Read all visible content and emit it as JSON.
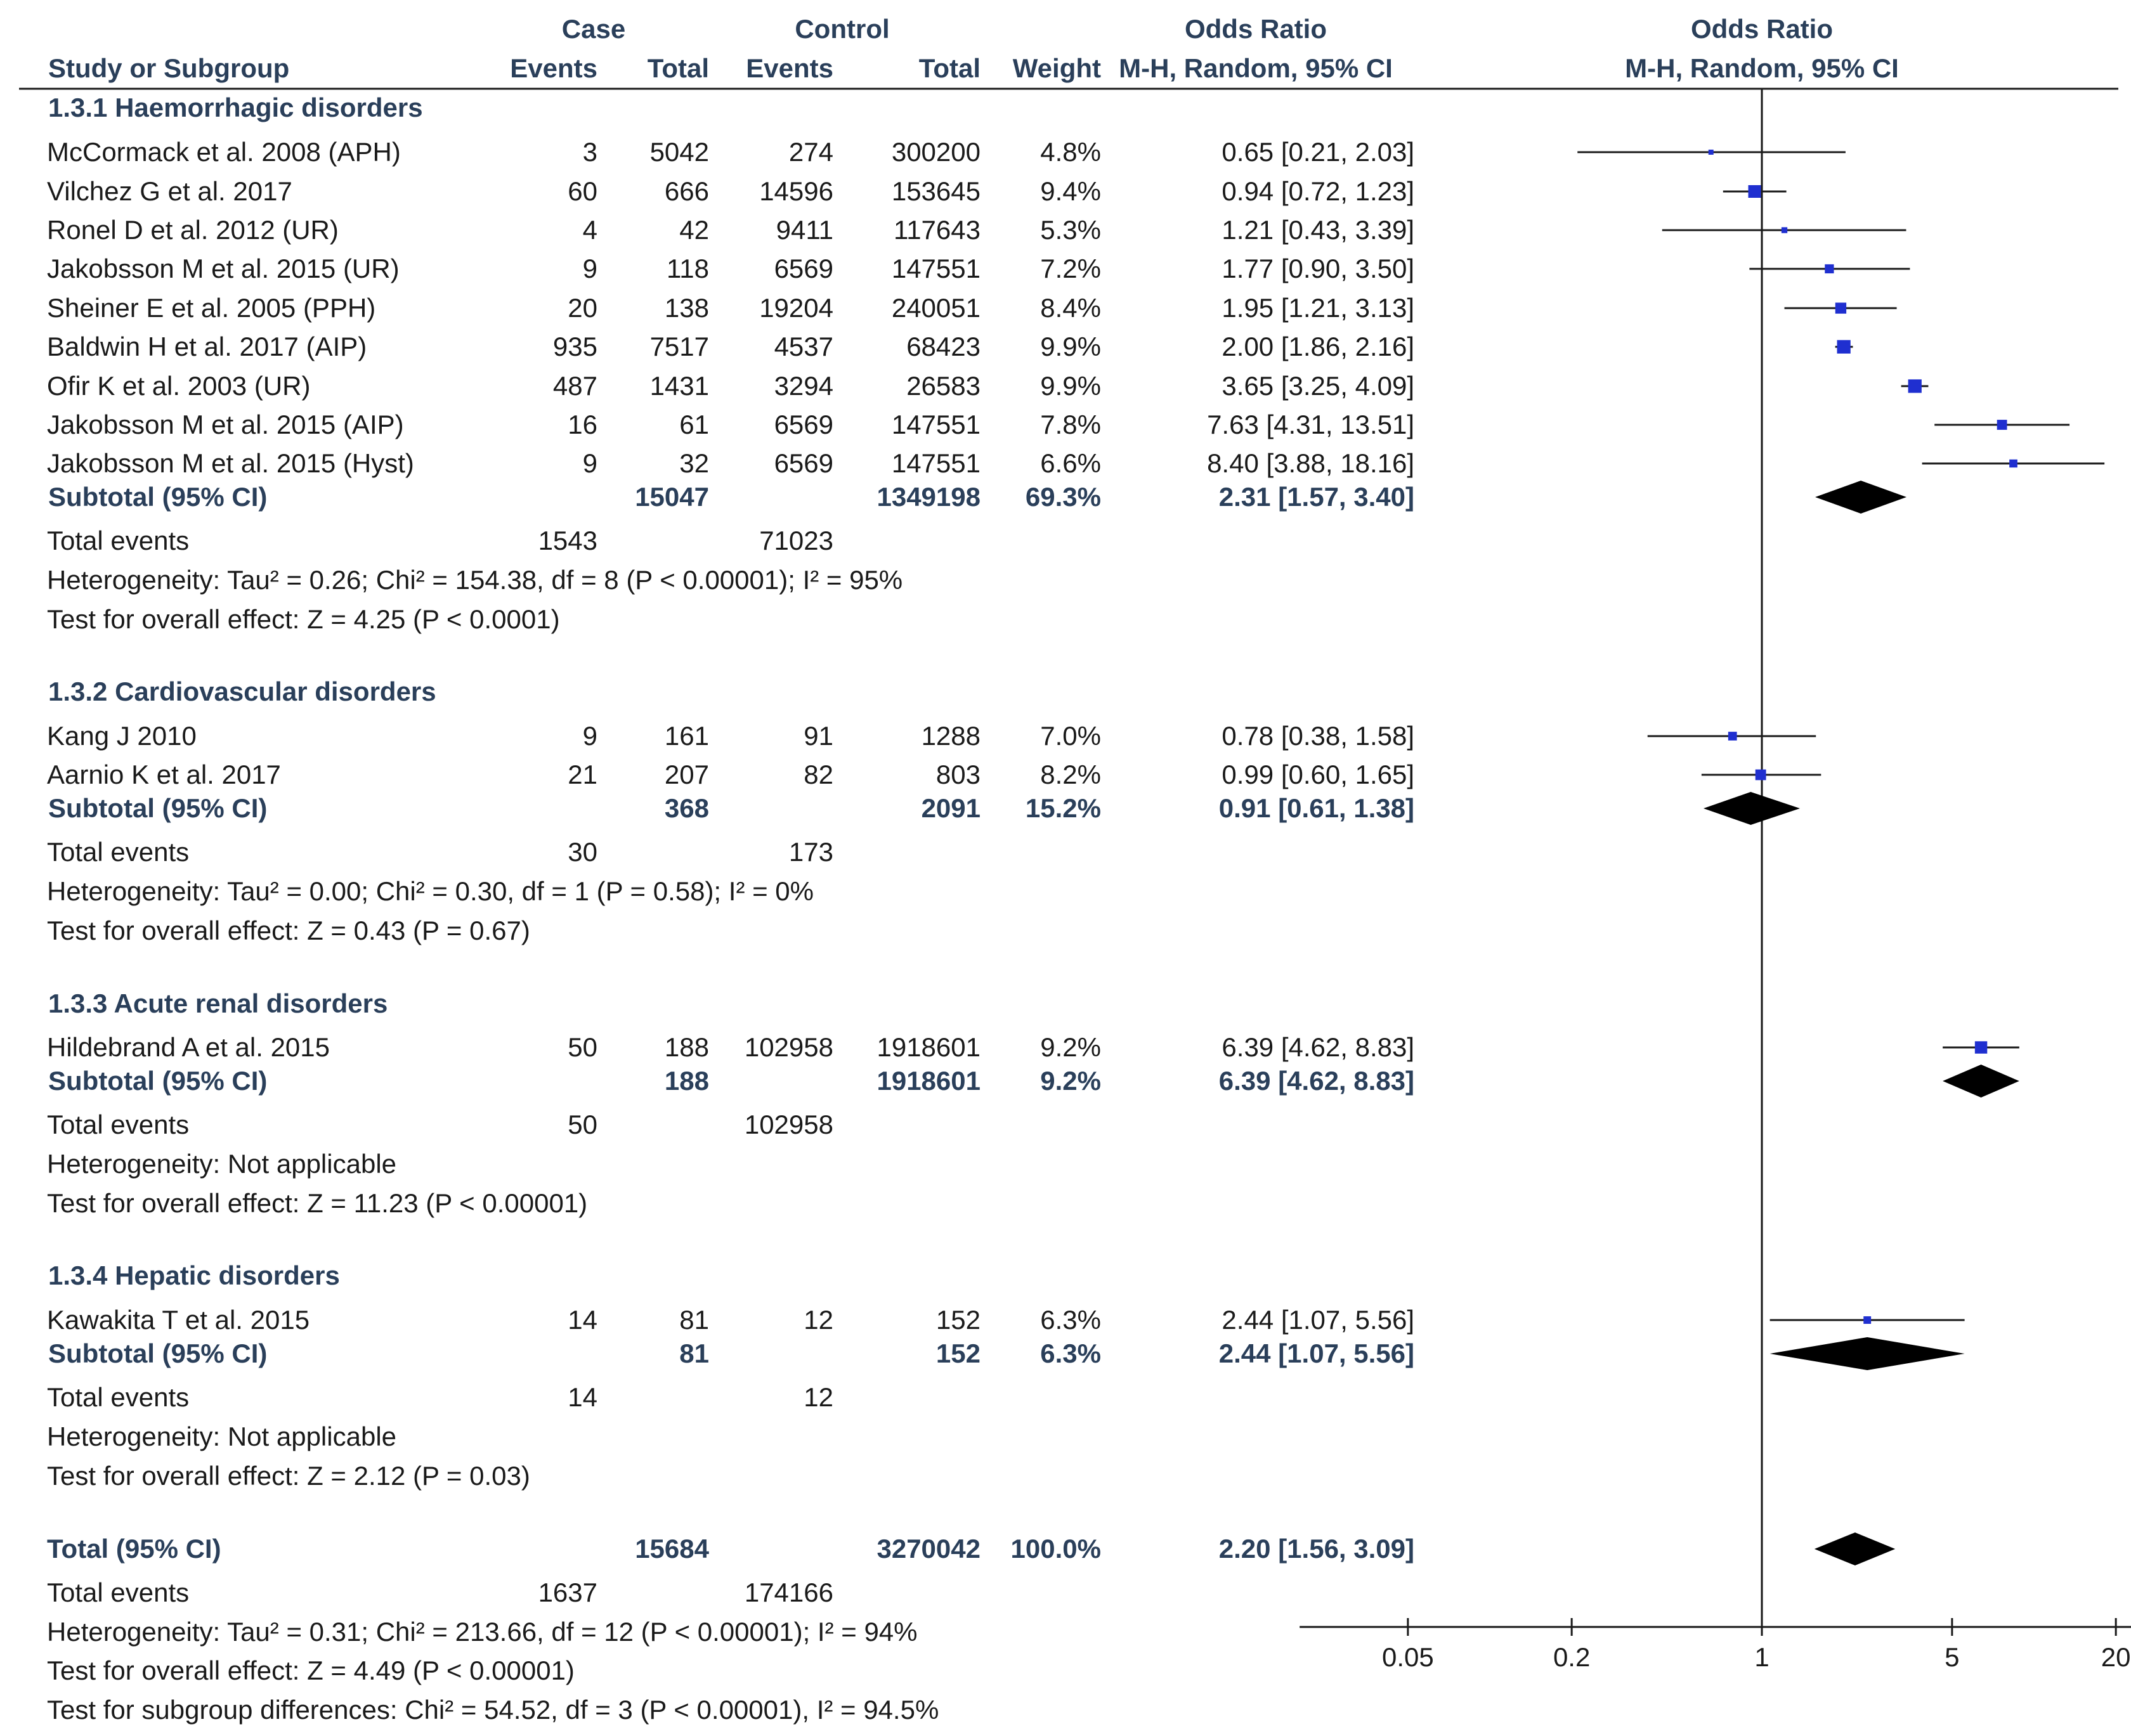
{
  "header": {
    "case": "Case",
    "control": "Control",
    "study_col": "Study or Subgroup",
    "events": "Events",
    "total": "Total",
    "events2": "Events",
    "total2": "Total",
    "weight": "Weight",
    "or_title": "Odds Ratio",
    "or_method": "M-H, Random, 95% CI",
    "plot_title": "Odds Ratio",
    "plot_method": "M-H, Random, 95% CI"
  },
  "groups": [
    {
      "title": "1.3.1 Haemorrhagic disorders",
      "studies": [
        {
          "name": "McCormack et al. 2008 (APH)",
          "ce": "3",
          "ct": "5042",
          "ke": "274",
          "kt": "300200",
          "w": "4.8%",
          "ci": "0.65 [0.21, 2.03]"
        },
        {
          "name": "Vilchez G et al. 2017",
          "ce": "60",
          "ct": "666",
          "ke": "14596",
          "kt": "153645",
          "w": "9.4%",
          "ci": "0.94 [0.72, 1.23]"
        },
        {
          "name": "Ronel D et al. 2012 (UR)",
          "ce": "4",
          "ct": "42",
          "ke": "9411",
          "kt": "117643",
          "w": "5.3%",
          "ci": "1.21 [0.43, 3.39]"
        },
        {
          "name": "Jakobsson M et al. 2015 (UR)",
          "ce": "9",
          "ct": "118",
          "ke": "6569",
          "kt": "147551",
          "w": "7.2%",
          "ci": "1.77 [0.90, 3.50]"
        },
        {
          "name": "Sheiner E et al. 2005 (PPH)",
          "ce": "20",
          "ct": "138",
          "ke": "19204",
          "kt": "240051",
          "w": "8.4%",
          "ci": "1.95 [1.21, 3.13]"
        },
        {
          "name": "Baldwin H et al. 2017 (AIP)",
          "ce": "935",
          "ct": "7517",
          "ke": "4537",
          "kt": "68423",
          "w": "9.9%",
          "ci": "2.00 [1.86, 2.16]"
        },
        {
          "name": "Ofir K et al. 2003 (UR)",
          "ce": "487",
          "ct": "1431",
          "ke": "3294",
          "kt": "26583",
          "w": "9.9%",
          "ci": "3.65 [3.25, 4.09]"
        },
        {
          "name": "Jakobsson M et al. 2015 (AIP)",
          "ce": "16",
          "ct": "61",
          "ke": "6569",
          "kt": "147551",
          "w": "7.8%",
          "ci": "7.63 [4.31, 13.51]"
        },
        {
          "name": "Jakobsson M et al. 2015 (Hyst)",
          "ce": "9",
          "ct": "32",
          "ke": "6569",
          "kt": "147551",
          "w": "6.6%",
          "ci": "8.40 [3.88, 18.16]"
        }
      ],
      "subtotal": {
        "label": "Subtotal (95% CI)",
        "ct": "15047",
        "kt": "1349198",
        "w": "69.3%",
        "ci": "2.31 [1.57, 3.40]"
      },
      "events": {
        "label": "Total events",
        "ce": "1543",
        "ke": "71023"
      },
      "heterogeneity": "Heterogeneity: Tau² = 0.26; Chi² = 154.38, df = 8 (P < 0.00001); I² = 95%",
      "overall": "Test for overall effect: Z = 4.25 (P < 0.0001)"
    },
    {
      "title": "1.3.2 Cardiovascular disorders",
      "studies": [
        {
          "name": "Kang J 2010",
          "ce": "9",
          "ct": "161",
          "ke": "91",
          "kt": "1288",
          "w": "7.0%",
          "ci": "0.78 [0.38, 1.58]"
        },
        {
          "name": "Aarnio K et al. 2017",
          "ce": "21",
          "ct": "207",
          "ke": "82",
          "kt": "803",
          "w": "8.2%",
          "ci": "0.99 [0.60, 1.65]"
        }
      ],
      "subtotal": {
        "label": "Subtotal (95% CI)",
        "ct": "368",
        "kt": "2091",
        "w": "15.2%",
        "ci": "0.91 [0.61, 1.38]"
      },
      "events": {
        "label": "Total events",
        "ce": "30",
        "ke": "173"
      },
      "heterogeneity": "Heterogeneity: Tau² = 0.00; Chi² = 0.30, df = 1 (P = 0.58); I² = 0%",
      "overall": "Test for overall effect: Z = 0.43 (P = 0.67)"
    },
    {
      "title": "1.3.3 Acute renal disorders",
      "studies": [
        {
          "name": "Hildebrand A et al. 2015",
          "ce": "50",
          "ct": "188",
          "ke": "102958",
          "kt": "1918601",
          "w": "9.2%",
          "ci": "6.39 [4.62, 8.83]"
        }
      ],
      "subtotal": {
        "label": "Subtotal (95% CI)",
        "ct": "188",
        "kt": "1918601",
        "w": "9.2%",
        "ci": "6.39 [4.62, 8.83]"
      },
      "events": {
        "label": "Total events",
        "ce": "50",
        "ke": "102958"
      },
      "heterogeneity": "Heterogeneity: Not applicable",
      "overall": "Test for overall effect: Z = 11.23 (P < 0.00001)"
    },
    {
      "title": "1.3.4 Hepatic disorders",
      "studies": [
        {
          "name": "Kawakita T et al. 2015",
          "ce": "14",
          "ct": "81",
          "ke": "12",
          "kt": "152",
          "w": "6.3%",
          "ci": "2.44 [1.07, 5.56]"
        }
      ],
      "subtotal": {
        "label": "Subtotal (95% CI)",
        "ct": "81",
        "kt": "152",
        "w": "6.3%",
        "ci": "2.44 [1.07, 5.56]"
      },
      "events": {
        "label": "Total events",
        "ce": "14",
        "ke": "12"
      },
      "heterogeneity": "Heterogeneity: Not applicable",
      "overall": "Test for overall effect: Z = 2.12 (P = 0.03)"
    }
  ],
  "total": {
    "label": "Total (95% CI)",
    "ct": "15684",
    "kt": "3270042",
    "w": "100.0%",
    "ci": "2.20 [1.56, 3.09]",
    "events": {
      "label": "Total events",
      "ce": "1637",
      "ke": "174166"
    },
    "heterogeneity": "Heterogeneity: Tau² = 0.31; Chi² = 213.66, df = 12 (P < 0.00001); I² = 94%",
    "overall": "Test for overall effect: Z = 4.49 (P < 0.00001)",
    "subgroup": "Test for subgroup differences: Chi² = 54.52, df = 3 (P < 0.00001), I² = 94.5%"
  },
  "chart_data": {
    "type": "forest",
    "title": "Odds Ratio",
    "subtitle": "M-H, Random, 95% CI",
    "x_scale": "log",
    "xlim": [
      0.02,
      40
    ],
    "x_ticks": [
      0.05,
      0.2,
      1,
      5,
      20
    ],
    "x_tick_labels": [
      "0.05",
      "0.2",
      "1",
      "5",
      "20"
    ],
    "reference_line": 1,
    "studies": [
      {
        "name": "McCormack et al. 2008 (APH)",
        "or": 0.65,
        "lo": 0.21,
        "hi": 2.03,
        "weight": 4.8
      },
      {
        "name": "Vilchez G et al. 2017",
        "or": 0.94,
        "lo": 0.72,
        "hi": 1.23,
        "weight": 9.4
      },
      {
        "name": "Ronel D et al. 2012 (UR)",
        "or": 1.21,
        "lo": 0.43,
        "hi": 3.39,
        "weight": 5.3
      },
      {
        "name": "Jakobsson M et al. 2015 (UR)",
        "or": 1.77,
        "lo": 0.9,
        "hi": 3.5,
        "weight": 7.2
      },
      {
        "name": "Sheiner E et al. 2005 (PPH)",
        "or": 1.95,
        "lo": 1.21,
        "hi": 3.13,
        "weight": 8.4
      },
      {
        "name": "Baldwin H et al. 2017 (AIP)",
        "or": 2.0,
        "lo": 1.86,
        "hi": 2.16,
        "weight": 9.9
      },
      {
        "name": "Ofir K et al. 2003 (UR)",
        "or": 3.65,
        "lo": 3.25,
        "hi": 4.09,
        "weight": 9.9
      },
      {
        "name": "Jakobsson M et al. 2015 (AIP)",
        "or": 7.63,
        "lo": 4.31,
        "hi": 13.51,
        "weight": 7.8
      },
      {
        "name": "Jakobsson M et al. 2015 (Hyst)",
        "or": 8.4,
        "lo": 3.88,
        "hi": 18.16,
        "weight": 6.6
      },
      {
        "name": "Kang J 2010",
        "or": 0.78,
        "lo": 0.38,
        "hi": 1.58,
        "weight": 7.0
      },
      {
        "name": "Aarnio K et al. 2017",
        "or": 0.99,
        "lo": 0.6,
        "hi": 1.65,
        "weight": 8.2
      },
      {
        "name": "Hildebrand A et al. 2015",
        "or": 6.39,
        "lo": 4.62,
        "hi": 8.83,
        "weight": 9.2
      },
      {
        "name": "Kawakita T et al. 2015",
        "or": 2.44,
        "lo": 1.07,
        "hi": 5.56,
        "weight": 6.3
      }
    ],
    "pooled": [
      {
        "name": "Subtotal 1.3.1",
        "or": 2.31,
        "lo": 1.57,
        "hi": 3.4
      },
      {
        "name": "Subtotal 1.3.2",
        "or": 0.91,
        "lo": 0.61,
        "hi": 1.38
      },
      {
        "name": "Subtotal 1.3.3",
        "or": 6.39,
        "lo": 4.62,
        "hi": 8.83
      },
      {
        "name": "Subtotal 1.3.4",
        "or": 2.44,
        "lo": 1.07,
        "hi": 5.56
      },
      {
        "name": "Total",
        "or": 2.2,
        "lo": 1.56,
        "hi": 3.09
      }
    ]
  },
  "colors": {
    "header_text": "#2a3f5a",
    "study_marker": "#1f2fd0",
    "line": "#1a1a1a",
    "diamond": "#000000"
  }
}
